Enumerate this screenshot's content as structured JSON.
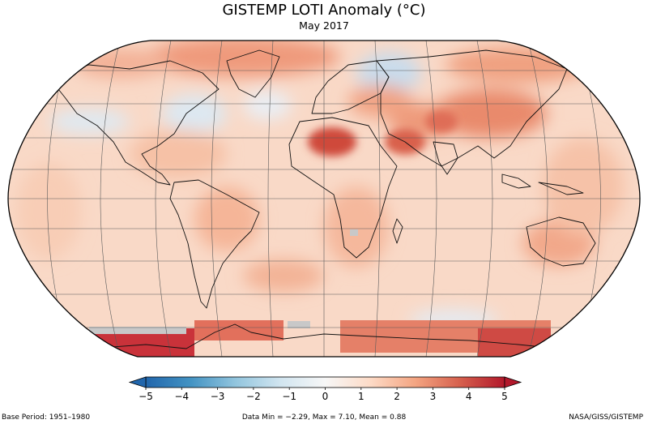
{
  "title": "GISTEMP LOTI Anomaly (°C)",
  "subtitle": "May 2017",
  "colorbar": {
    "ticks": [
      "−5",
      "−4",
      "−3",
      "−2",
      "−1",
      "0",
      "1",
      "2",
      "3",
      "4",
      "5"
    ],
    "min": -5,
    "max": 5,
    "colors": [
      "#2166ac",
      "#4393c3",
      "#92c5de",
      "#d1e5f0",
      "#f7f7f7",
      "#fddbc7",
      "#f4a582",
      "#d6604d",
      "#b2182b"
    ]
  },
  "map": {
    "projection": "robinson",
    "missing_data_color": "#c8c8c8",
    "coastline_color": "#000000",
    "gridline_color": "#555555",
    "hotspots_description_free": true
  },
  "footer": {
    "base_period": "Base Period: 1951–1980",
    "stats": "Data Min = −2.29, Max = 7.10, Mean = 0.88",
    "source": "NASA/GISS/GISTEMP"
  }
}
